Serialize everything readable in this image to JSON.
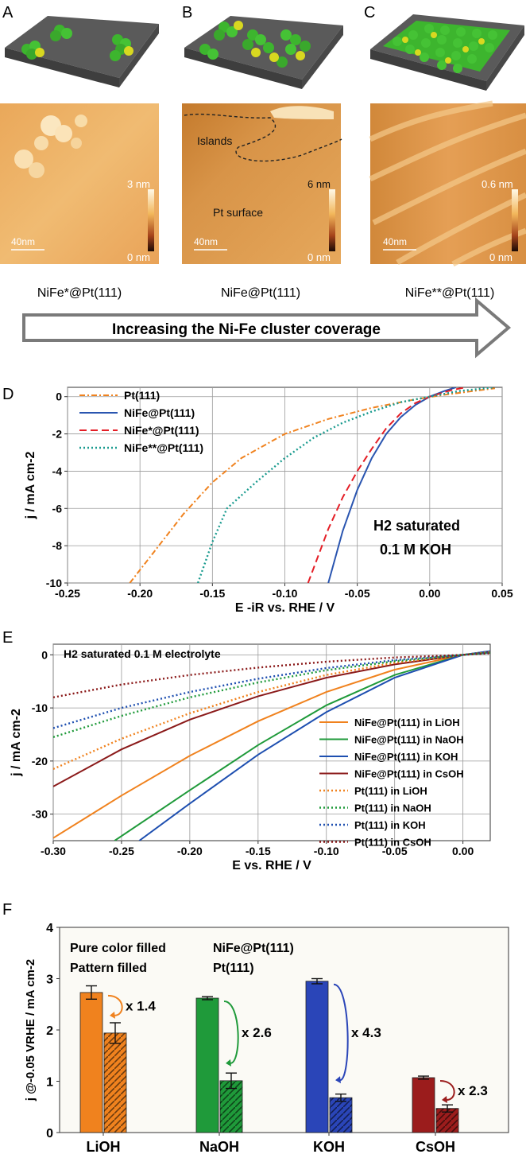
{
  "panels_top": {
    "letters": [
      "A",
      "B",
      "C"
    ],
    "captions": [
      "NiFe*@Pt(111)",
      "NiFe@Pt(111)",
      "NiFe**@Pt(111)"
    ],
    "scale_max": [
      "3 nm",
      "6 nm",
      "0.6 nm"
    ],
    "scale_min": [
      "0 nm",
      "0 nm",
      "0 nm"
    ],
    "scalebar": [
      "40nm",
      "40nm",
      "40nm"
    ],
    "annot_islands": "Islands",
    "annot_surface": "Pt surface",
    "arrow_text": "Increasing the Ni-Fe cluster coverage",
    "colors": {
      "gray": "#6b6b6b",
      "green": "#3db52e",
      "yellow": "#d8d820",
      "afm_light": "#f3c98a",
      "afm_dark": "#c9731e"
    }
  },
  "chart_data": [
    {
      "panel": "D",
      "type": "line",
      "xlabel": "E -iR vs. RHE / V",
      "ylabel": "j / mA cm-2",
      "xlim": [
        -0.25,
        0.05
      ],
      "ylim": [
        -10,
        0.5
      ],
      "xticks": [
        "-0.25",
        "-0.20",
        "-0.15",
        "-0.10",
        "-0.05",
        "0.00",
        "0.05"
      ],
      "yticks": [
        "0",
        "-2",
        "-4",
        "-6",
        "-8",
        "-10"
      ],
      "annotation": [
        "H2 saturated",
        "0.1 M KOH"
      ],
      "legend_position": "top-left",
      "grid": true,
      "series": [
        {
          "name": "Pt(111)",
          "color": "#f0821e",
          "dash": "dashdot",
          "points": [
            [
              -0.207,
              -10
            ],
            [
              -0.19,
              -8.3
            ],
            [
              -0.17,
              -6.3
            ],
            [
              -0.15,
              -4.6
            ],
            [
              -0.13,
              -3.3
            ],
            [
              -0.1,
              -2.0
            ],
            [
              -0.07,
              -1.2
            ],
            [
              -0.04,
              -0.6
            ],
            [
              -0.01,
              -0.15
            ],
            [
              0.01,
              0.1
            ],
            [
              0.045,
              0.45
            ]
          ]
        },
        {
          "name": "NiFe@Pt(111)",
          "color": "#2a55b0",
          "dash": "solid",
          "points": [
            [
              -0.07,
              -10
            ],
            [
              -0.06,
              -7.2
            ],
            [
              -0.05,
              -5.0
            ],
            [
              -0.04,
              -3.3
            ],
            [
              -0.03,
              -2.0
            ],
            [
              -0.02,
              -1.1
            ],
            [
              -0.01,
              -0.45
            ],
            [
              0.0,
              0.0
            ],
            [
              0.01,
              0.3
            ],
            [
              0.018,
              0.5
            ]
          ]
        },
        {
          "name": "NiFe*@Pt(111)",
          "color": "#e41e26",
          "dash": "dashed",
          "points": [
            [
              -0.084,
              -10
            ],
            [
              -0.07,
              -7.1
            ],
            [
              -0.06,
              -5.4
            ],
            [
              -0.05,
              -4.0
            ],
            [
              -0.04,
              -2.8
            ],
            [
              -0.03,
              -1.7
            ],
            [
              -0.02,
              -0.9
            ],
            [
              -0.01,
              -0.35
            ],
            [
              0.0,
              0.0
            ],
            [
              0.015,
              0.35
            ],
            [
              0.025,
              0.5
            ]
          ]
        },
        {
          "name": "NiFe**@Pt(111)",
          "color": "#1a9b8f",
          "dash": "dotted",
          "points": [
            [
              -0.16,
              -10
            ],
            [
              -0.15,
              -7.8
            ],
            [
              -0.14,
              -6.0
            ],
            [
              -0.12,
              -4.6
            ],
            [
              -0.1,
              -3.3
            ],
            [
              -0.08,
              -2.2
            ],
            [
              -0.06,
              -1.4
            ],
            [
              -0.04,
              -0.8
            ],
            [
              -0.02,
              -0.3
            ],
            [
              0.0,
              0.0
            ],
            [
              0.02,
              0.3
            ],
            [
              0.045,
              0.5
            ]
          ]
        }
      ]
    },
    {
      "panel": "E",
      "type": "line",
      "xlabel": "E vs. RHE / V",
      "ylabel": "j / mA cm-2",
      "xlim": [
        -0.3,
        0.02
      ],
      "ylim": [
        -35,
        2
      ],
      "xticks": [
        "-0.30",
        "-0.25",
        "-0.20",
        "-0.15",
        "-0.10",
        "-0.05",
        "0.00"
      ],
      "yticks": [
        "0",
        "-10",
        "-20",
        "-30"
      ],
      "annotation": "H2 saturated 0.1 M electrolyte",
      "legend_position": "bottom-right",
      "grid": true,
      "series": [
        {
          "name": "NiFe@Pt(111) in LiOH",
          "color": "#f0821e",
          "dash": "solid",
          "points": [
            [
              -0.3,
              -34.5
            ],
            [
              -0.25,
              -26.5
            ],
            [
              -0.2,
              -19.0
            ],
            [
              -0.15,
              -12.5
            ],
            [
              -0.1,
              -7.0
            ],
            [
              -0.05,
              -2.8
            ],
            [
              0.0,
              0.0
            ],
            [
              0.02,
              0.6
            ]
          ]
        },
        {
          "name": "NiFe@Pt(111) in NaOH",
          "color": "#1f9a3a",
          "dash": "solid",
          "points": [
            [
              -0.255,
              -35
            ],
            [
              -0.2,
              -25.5
            ],
            [
              -0.15,
              -17.0
            ],
            [
              -0.1,
              -9.5
            ],
            [
              -0.05,
              -3.8
            ],
            [
              0.0,
              0.0
            ],
            [
              0.02,
              0.7
            ]
          ]
        },
        {
          "name": "NiFe@Pt(111) in KOH",
          "color": "#1e4fb0",
          "dash": "solid",
          "points": [
            [
              -0.237,
              -35
            ],
            [
              -0.2,
              -28.0
            ],
            [
              -0.15,
              -18.8
            ],
            [
              -0.1,
              -10.8
            ],
            [
              -0.05,
              -4.3
            ],
            [
              0.0,
              0.0
            ],
            [
              0.02,
              0.7
            ]
          ]
        },
        {
          "name": "NiFe@Pt(111) in CsOH",
          "color": "#8b1a1a",
          "dash": "solid",
          "points": [
            [
              -0.3,
              -24.8
            ],
            [
              -0.25,
              -17.8
            ],
            [
              -0.2,
              -12.2
            ],
            [
              -0.15,
              -7.8
            ],
            [
              -0.1,
              -4.3
            ],
            [
              -0.05,
              -1.8
            ],
            [
              0.0,
              0.0
            ],
            [
              0.02,
              0.5
            ]
          ]
        },
        {
          "name": "Pt(111) in LiOH",
          "color": "#f0821e",
          "dash": "dotted",
          "points": [
            [
              -0.3,
              -21.5
            ],
            [
              -0.25,
              -15.8
            ],
            [
              -0.2,
              -11.0
            ],
            [
              -0.15,
              -7.0
            ],
            [
              -0.1,
              -3.8
            ],
            [
              -0.05,
              -1.5
            ],
            [
              0.0,
              0.0
            ],
            [
              0.02,
              0.5
            ]
          ]
        },
        {
          "name": "Pt(111) in NaOH",
          "color": "#1f9a3a",
          "dash": "dotted",
          "points": [
            [
              -0.3,
              -15.5
            ],
            [
              -0.25,
              -11.5
            ],
            [
              -0.2,
              -8.0
            ],
            [
              -0.15,
              -5.2
            ],
            [
              -0.1,
              -2.9
            ],
            [
              -0.05,
              -1.2
            ],
            [
              0.0,
              0.0
            ],
            [
              0.02,
              0.4
            ]
          ]
        },
        {
          "name": "Pt(111) in KOH",
          "color": "#1e4fb0",
          "dash": "dotted",
          "points": [
            [
              -0.3,
              -13.8
            ],
            [
              -0.25,
              -10.0
            ],
            [
              -0.2,
              -7.0
            ],
            [
              -0.15,
              -4.5
            ],
            [
              -0.1,
              -2.5
            ],
            [
              -0.05,
              -1.0
            ],
            [
              0.0,
              0.0
            ],
            [
              0.02,
              0.4
            ]
          ]
        },
        {
          "name": "Pt(111) in CsOH",
          "color": "#8b1a1a",
          "dash": "dotted",
          "points": [
            [
              -0.3,
              -8.0
            ],
            [
              -0.25,
              -5.6
            ],
            [
              -0.2,
              -3.8
            ],
            [
              -0.15,
              -2.4
            ],
            [
              -0.1,
              -1.3
            ],
            [
              -0.05,
              -0.5
            ],
            [
              0.0,
              0.0
            ],
            [
              0.02,
              0.3
            ]
          ]
        }
      ]
    },
    {
      "panel": "F",
      "type": "bar",
      "ylabel": "j @-0.05 VRHE / mA cm-2",
      "ylim": [
        0,
        4
      ],
      "yticks": [
        "0",
        "1",
        "2",
        "3",
        "4"
      ],
      "categories": [
        "LiOH",
        "NaOH",
        "KOH",
        "CsOH"
      ],
      "legend_lines": [
        [
          "Pure color filled",
          "NiFe@Pt(111)"
        ],
        [
          "Pattern filled",
          "Pt(111)"
        ]
      ],
      "series": [
        {
          "name": "NiFe@Pt(111)",
          "values": [
            2.73,
            2.62,
            2.95,
            1.07
          ],
          "errors": [
            0.13,
            0.03,
            0.05,
            0.03
          ]
        },
        {
          "name": "Pt(111)",
          "values": [
            1.94,
            1.01,
            0.68,
            0.47
          ],
          "errors": [
            0.2,
            0.15,
            0.07,
            0.07
          ]
        }
      ],
      "colors": [
        "#f0821e",
        "#1f9a3a",
        "#2a45b8",
        "#9b1c1c"
      ],
      "ratios": [
        "x 1.4",
        "x 2.6",
        "x 4.3",
        "x 2.3"
      ]
    }
  ]
}
